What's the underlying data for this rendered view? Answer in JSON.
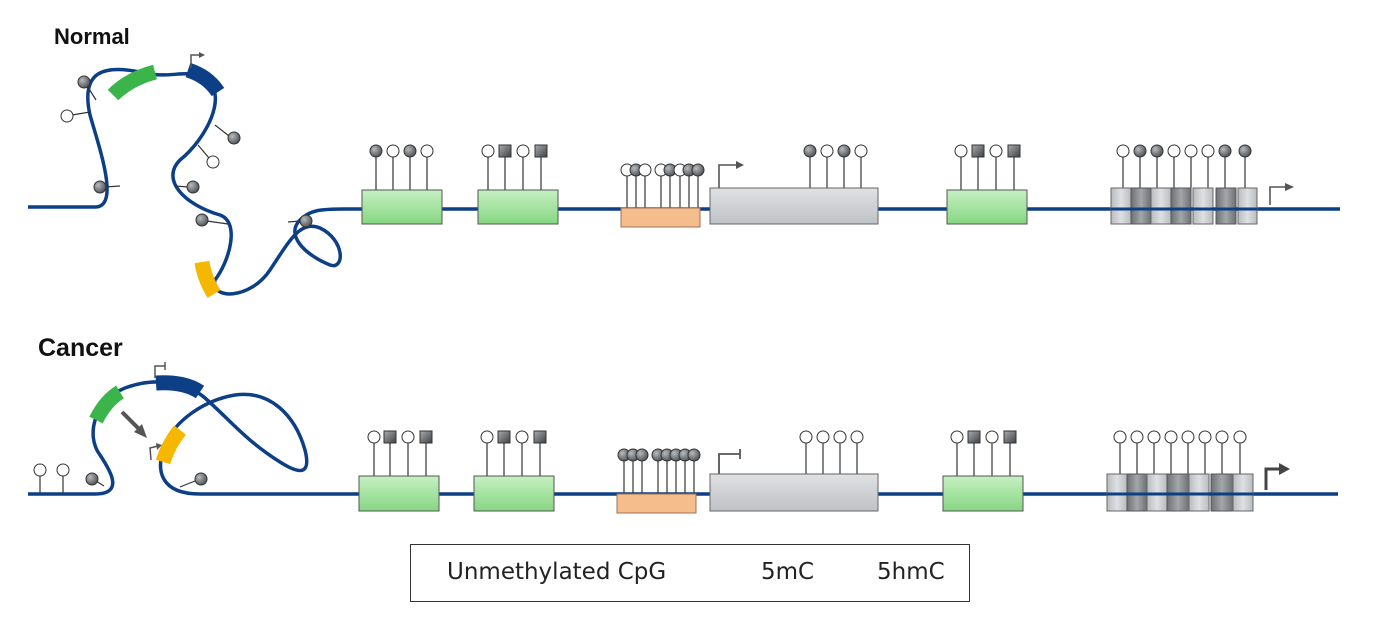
{
  "panels": {
    "normal": {
      "title": "Normal"
    },
    "cancer": {
      "title": "Cancer"
    }
  },
  "legend": {
    "unmethylated": "Unmethylated CpG",
    "methyl_5mC": "5mC",
    "hydroxymethyl_5hmC": "5hmC"
  },
  "colors": {
    "dna": "#0d3f86",
    "enhancer": "#9fe09b",
    "promoter_island": "#f5bd8b",
    "gene_body": "#cdd0d4",
    "exon_dark": "#8b8f94",
    "exon_light": "#c9ccd0",
    "loop_green": "#3bb54a",
    "loop_navy": "#0d3f86",
    "loop_yellow": "#f5b700",
    "methyl_fill": "#6a6d70",
    "arrow": "#555555"
  }
}
